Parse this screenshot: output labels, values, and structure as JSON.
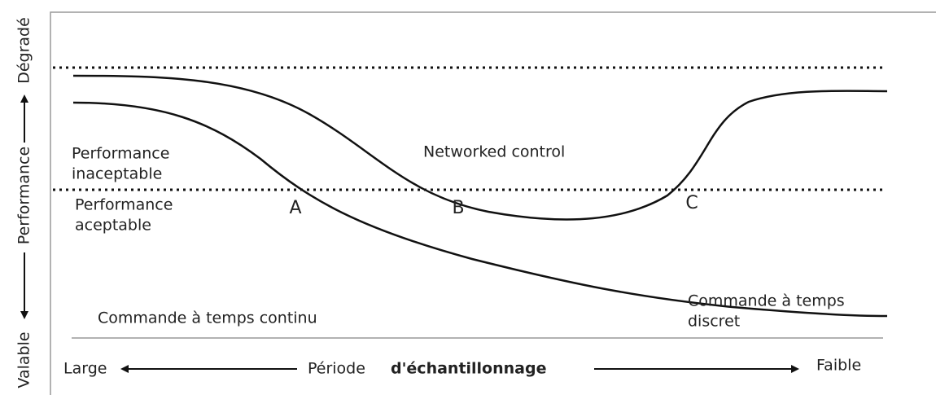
{
  "axis": {
    "top": "Dégradé",
    "middle": "Performance",
    "bottom": "Valable"
  },
  "regions": {
    "unacceptable": [
      "Performance",
      "inaceptable"
    ],
    "acceptable": [
      "Performance",
      "aceptable"
    ]
  },
  "curves": {
    "networked": "Networked control",
    "discrete": [
      "Commande à temps",
      "discret"
    ],
    "continuous": "Commande à temps continu"
  },
  "points": [
    "A",
    "B",
    "C"
  ],
  "x_axis": {
    "left": "Large",
    "label": "Période",
    "label_bold": "d'échantillonnage",
    "right": "Faible"
  }
}
